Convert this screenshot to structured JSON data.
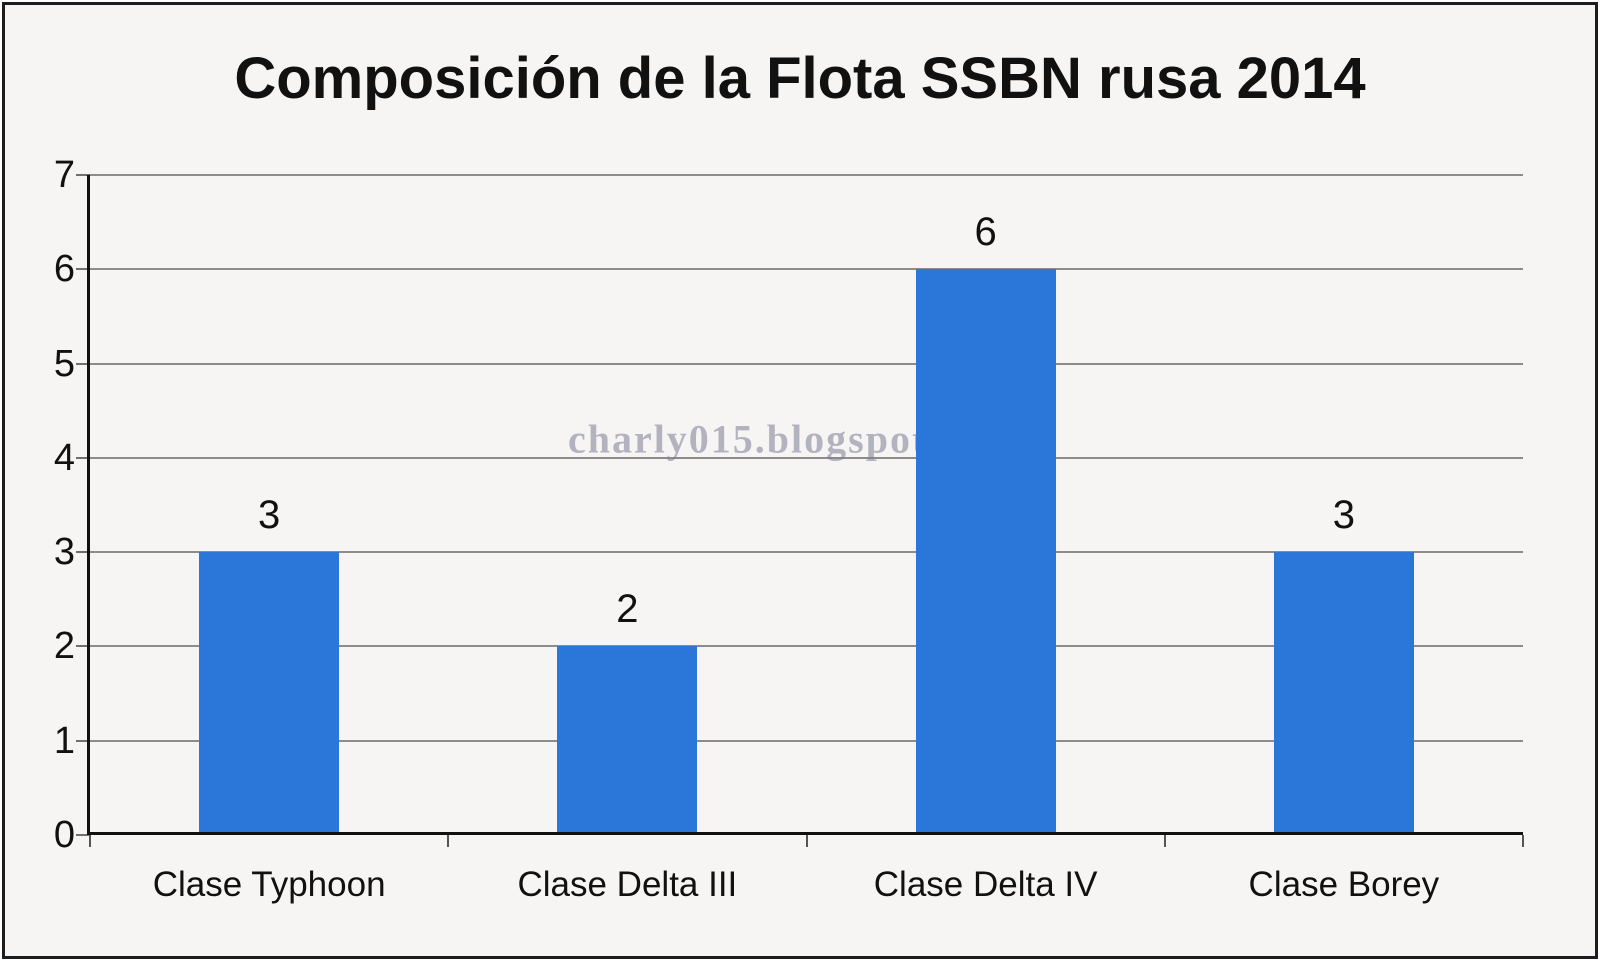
{
  "title": "Composición de la Flota SSBN rusa 2014",
  "watermark": "charly015.blogspot.com",
  "colors": {
    "bar": "#2b77d9",
    "background": "#f6f5f3",
    "gridline": "#8c8c8c",
    "axis": "#111111",
    "frame_border": "#1d1d1d"
  },
  "chart_data": {
    "type": "bar",
    "title": "Composición de la Flota SSBN rusa 2014",
    "categories": [
      "Clase Typhoon",
      "Clase Delta III",
      "Clase Delta IV",
      "Clase Borey"
    ],
    "values": [
      3,
      2,
      6,
      3
    ],
    "data_labels": [
      "3",
      "2",
      "6",
      "3"
    ],
    "xlabel": "",
    "ylabel": "",
    "ylim": [
      0,
      7
    ],
    "yticks": [
      0,
      1,
      2,
      3,
      4,
      5,
      6,
      7
    ],
    "grid": true,
    "legend": false,
    "bar_color": "#2b77d9"
  }
}
